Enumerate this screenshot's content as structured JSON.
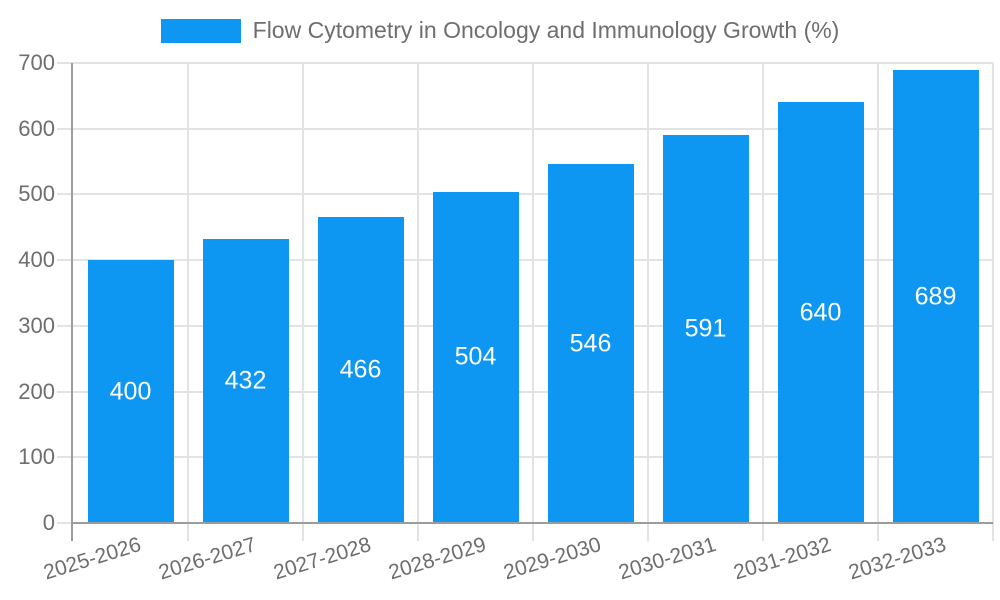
{
  "chart_data": {
    "type": "bar",
    "title": "Flow Cytometry in Oncology and Immunology Growth (%)",
    "categories": [
      "2025-2026",
      "2026-2027",
      "2027-2028",
      "2028-2029",
      "2029-2030",
      "2030-2031",
      "2031-2032",
      "2032-2033"
    ],
    "values": [
      400,
      432,
      466,
      504,
      546,
      591,
      640,
      689
    ],
    "xlabel": "",
    "ylabel": "",
    "ylim": [
      0,
      700
    ],
    "ytick_step": 100,
    "yticks": [
      0,
      100,
      200,
      300,
      400,
      500,
      600,
      700
    ],
    "grid": true,
    "legend_position": "top",
    "bar_color": "#0d96f2",
    "value_label_color": "#ffffff",
    "axis_text_color": "#6e6e6e",
    "gridline_color": "#e3e3e3",
    "axis_line_color": "#9c9c9c"
  }
}
